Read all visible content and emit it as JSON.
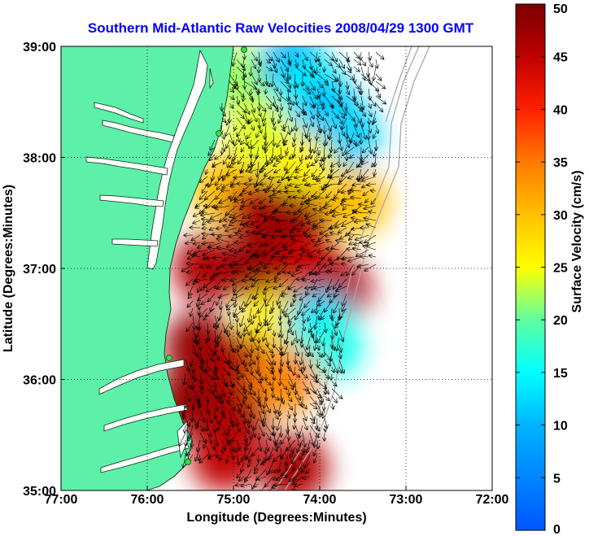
{
  "chart_data": {
    "type": "heatmap",
    "title": "Southern Mid-Atlantic Raw Velocities 2008/04/29 1300 GMT",
    "xlabel": "Longitude (Degrees:Minutes)",
    "ylabel": "Latitude (Degrees:Minutes)",
    "colorbar_label": "Surface Velocity (cm/s)",
    "x_tick_labels": [
      "77:00",
      "76:00",
      "75:00",
      "74:00",
      "73:00",
      "72:00"
    ],
    "x_tick_values": [
      -77,
      -76,
      -75,
      -74,
      -73,
      -72
    ],
    "y_tick_labels": [
      "39:00",
      "38:00",
      "37:00",
      "36:00",
      "35:00"
    ],
    "y_tick_values": [
      39,
      38,
      37,
      36,
      35
    ],
    "xlim": [
      -77,
      -72
    ],
    "ylim": [
      35,
      39
    ],
    "colorbar_ticks": [
      50,
      45,
      40,
      35,
      30,
      25,
      20,
      15,
      10,
      5,
      0
    ],
    "colorbar_range": [
      0,
      50
    ],
    "grid": true,
    "colormap": "jet",
    "land_color": "#5cf0a8",
    "arrow_color": "#000000",
    "coast_color": "#0a3010",
    "title_color": "#0000ff",
    "velocity_field": [
      {
        "lon": -74.9,
        "lat": 38.7,
        "v": 22
      },
      {
        "lon": -74.3,
        "lat": 38.8,
        "v": 10
      },
      {
        "lon": -74.1,
        "lat": 38.6,
        "v": 14
      },
      {
        "lon": -73.9,
        "lat": 38.4,
        "v": 11
      },
      {
        "lon": -73.7,
        "lat": 38.2,
        "v": 12
      },
      {
        "lon": -74.7,
        "lat": 38.2,
        "v": 24
      },
      {
        "lon": -74.2,
        "lat": 37.9,
        "v": 26
      },
      {
        "lon": -73.6,
        "lat": 37.6,
        "v": 30
      },
      {
        "lon": -75.1,
        "lat": 37.7,
        "v": 30
      },
      {
        "lon": -74.7,
        "lat": 37.5,
        "v": 46
      },
      {
        "lon": -74.3,
        "lat": 37.4,
        "v": 48
      },
      {
        "lon": -75.3,
        "lat": 37.0,
        "v": 46
      },
      {
        "lon": -74.7,
        "lat": 37.0,
        "v": 48
      },
      {
        "lon": -74.1,
        "lat": 37.0,
        "v": 44
      },
      {
        "lon": -73.8,
        "lat": 36.8,
        "v": 46
      },
      {
        "lon": -74.5,
        "lat": 36.5,
        "v": 26
      },
      {
        "lon": -74.0,
        "lat": 36.5,
        "v": 12
      },
      {
        "lon": -73.9,
        "lat": 36.3,
        "v": 16
      },
      {
        "lon": -75.4,
        "lat": 36.3,
        "v": 48
      },
      {
        "lon": -74.9,
        "lat": 36.1,
        "v": 46
      },
      {
        "lon": -74.4,
        "lat": 36.0,
        "v": 34
      },
      {
        "lon": -75.5,
        "lat": 35.8,
        "v": 48
      },
      {
        "lon": -75.0,
        "lat": 35.6,
        "v": 47
      },
      {
        "lon": -75.1,
        "lat": 35.3,
        "v": 45
      },
      {
        "lon": -74.3,
        "lat": 35.2,
        "v": 46
      }
    ]
  }
}
